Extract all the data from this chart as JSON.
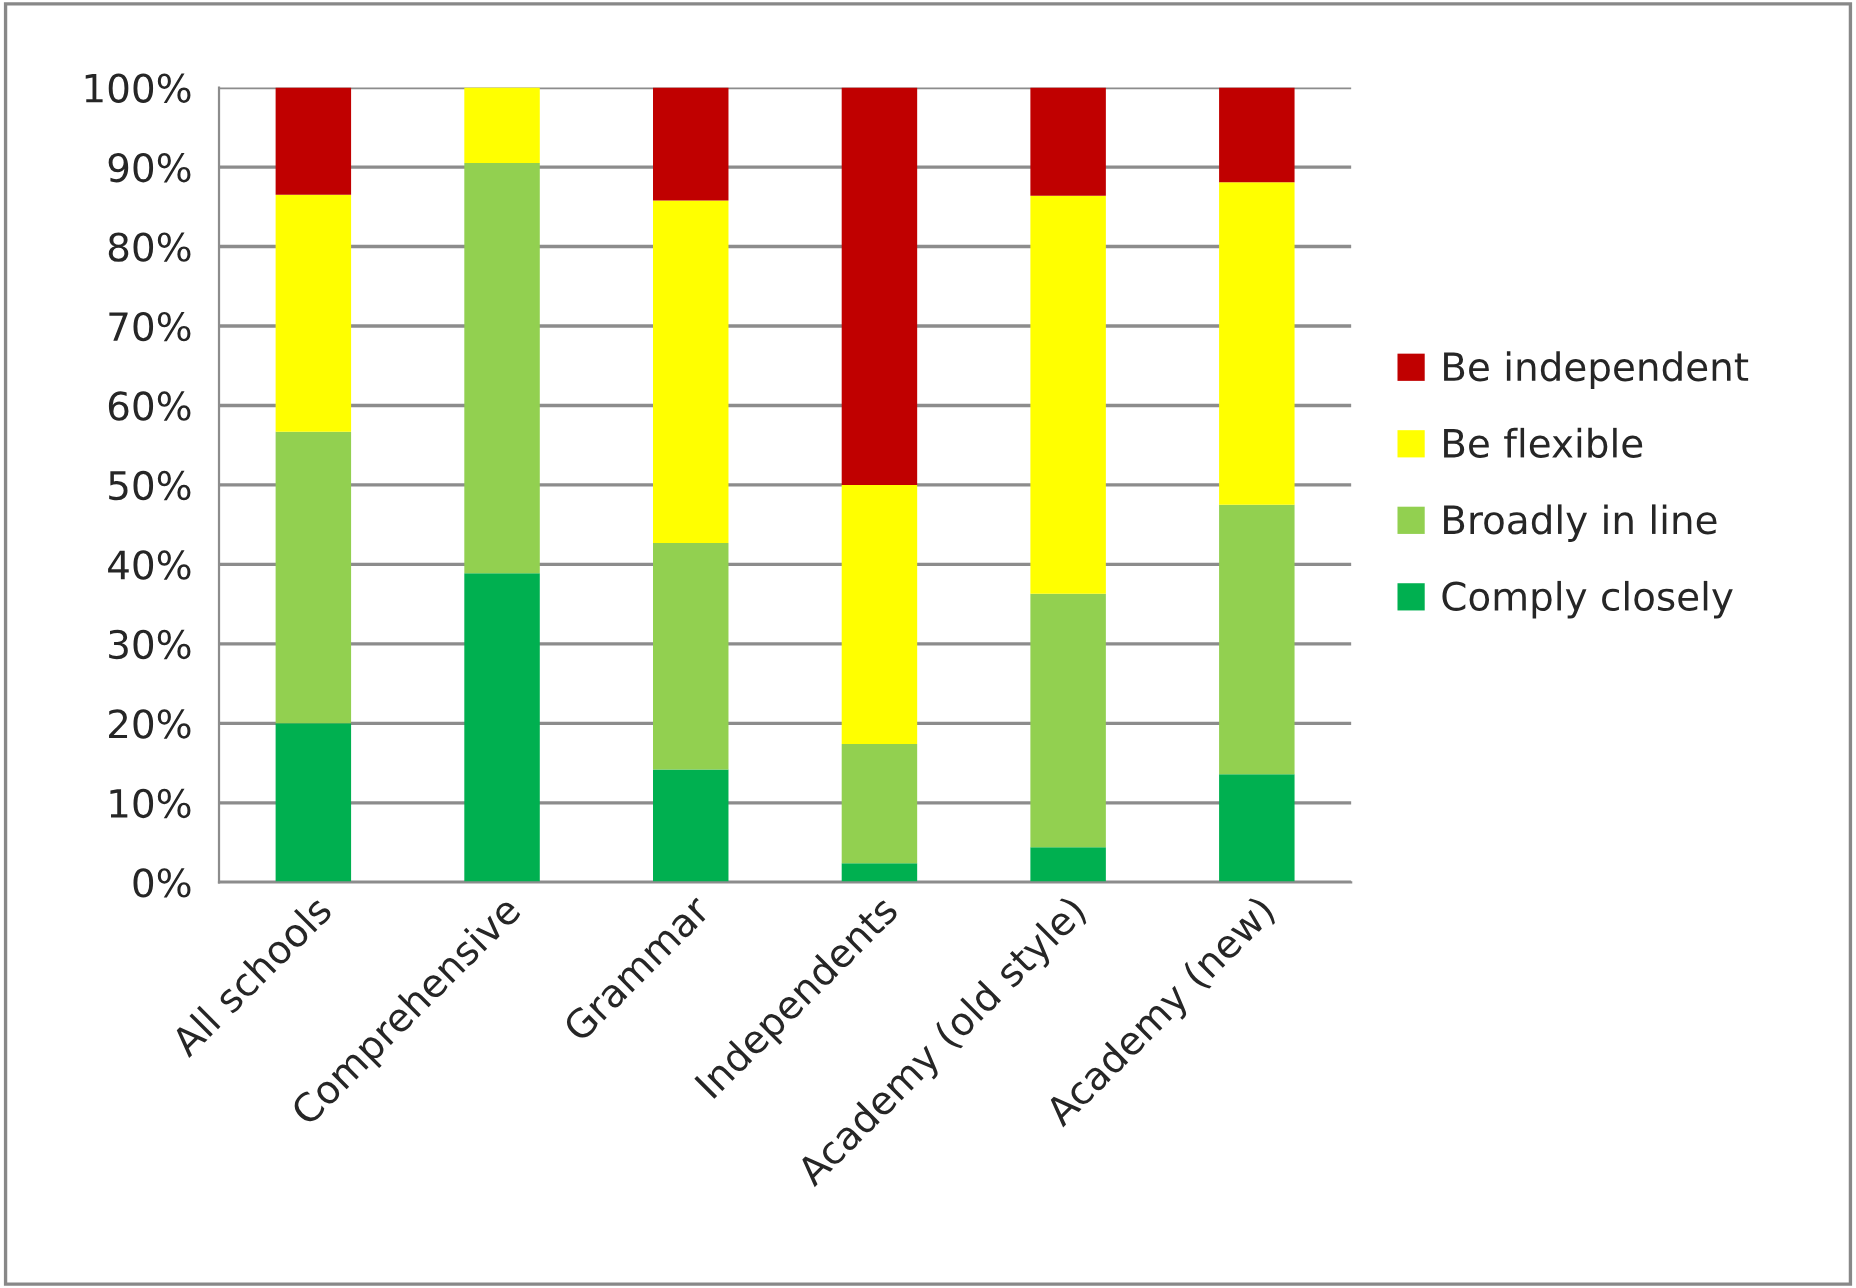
{
  "chart_data": {
    "type": "bar",
    "stacked": true,
    "categories": [
      "All schools",
      "Comprehensive",
      "Grammar",
      "Independents",
      "Academy (old style)",
      "Academy (new)"
    ],
    "series": [
      {
        "name": "Comply closely",
        "color": "#00b050",
        "values": [
          20,
          38.9,
          14.2,
          2.4,
          4.4,
          13.6
        ]
      },
      {
        "name": "Broadly in line",
        "color": "#92d050",
        "values": [
          36.7,
          51.6,
          28.5,
          15.0,
          31.9,
          33.9
        ]
      },
      {
        "name": "Be flexible",
        "color": "#ffff00",
        "values": [
          29.8,
          9.5,
          43.1,
          32.6,
          50.1,
          40.6
        ]
      },
      {
        "name": "Be independent",
        "color": "#c00000",
        "values": [
          13.5,
          null,
          14.2,
          50.0,
          13.6,
          11.9
        ]
      }
    ],
    "ylim": [
      0,
      100
    ],
    "yticks": [
      {
        "value": 0,
        "label": "0%"
      },
      {
        "value": 10,
        "label": "10%"
      },
      {
        "value": 20,
        "label": "20%"
      },
      {
        "value": 30,
        "label": "30%"
      },
      {
        "value": 40,
        "label": "40%"
      },
      {
        "value": 50,
        "label": "50%"
      },
      {
        "value": 60,
        "label": "60%"
      },
      {
        "value": 70,
        "label": "70%"
      },
      {
        "value": 80,
        "label": "80%"
      },
      {
        "value": 90,
        "label": "90%"
      },
      {
        "value": 100,
        "label": "100%"
      }
    ],
    "grid": "y",
    "legend": "right"
  }
}
